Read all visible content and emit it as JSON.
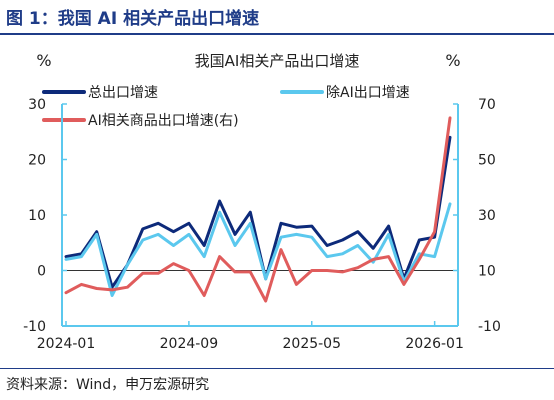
{
  "figure_title": "图 1：我国 AI 相关产品出口增速",
  "source": "资料来源：Wind，申万宏源研究",
  "chart_data": {
    "type": "line",
    "title": "我国AI相关产品出口增速",
    "left_unit": "%",
    "right_unit": "%",
    "x": [
      "2024-01",
      "2024-02",
      "2024-03",
      "2024-04",
      "2024-05",
      "2024-06",
      "2024-07",
      "2024-08",
      "2024-09",
      "2024-10",
      "2024-11",
      "2024-12",
      "2025-01",
      "2025-02",
      "2025-03",
      "2025-04",
      "2025-05",
      "2025-06",
      "2025-07",
      "2025-08",
      "2025-09",
      "2025-10",
      "2025-11",
      "2025-12",
      "2026-01",
      "2026-02"
    ],
    "x_tick_labels": [
      "2024-01",
      "2024-09",
      "2025-05",
      "2026-01"
    ],
    "y_left": {
      "min": -10,
      "max": 30,
      "ticks": [
        "-10",
        "0",
        "10",
        "20",
        "30"
      ]
    },
    "y_right": {
      "min": -10,
      "max": 70,
      "ticks": [
        "-10",
        "10",
        "30",
        "50",
        "70"
      ]
    },
    "series": [
      {
        "name": "总出口增速",
        "axis": "left",
        "color": "#0d2a7a",
        "values": [
          2.5,
          3.0,
          7.0,
          -3.0,
          1.0,
          7.5,
          8.5,
          7.0,
          8.5,
          4.5,
          12.5,
          6.5,
          10.5,
          -1.5,
          8.5,
          7.8,
          8.0,
          4.5,
          5.5,
          7.0,
          4.0,
          8.0,
          -1.5,
          5.5,
          6.0,
          24.0
        ]
      },
      {
        "name": "除AI出口增速",
        "axis": "left",
        "color": "#5bc8ee",
        "values": [
          2.0,
          2.5,
          6.5,
          -4.5,
          1.0,
          5.5,
          6.5,
          4.5,
          6.5,
          2.5,
          10.5,
          4.5,
          8.5,
          -1.5,
          6.0,
          6.5,
          6.0,
          2.5,
          3.0,
          4.5,
          1.5,
          6.5,
          -2.0,
          3.0,
          2.5,
          12.0
        ]
      },
      {
        "name": "AI相关商品出口增速(右)",
        "axis": "right",
        "color": "#e05c5c",
        "values": [
          2.0,
          5.0,
          3.5,
          3.0,
          4.0,
          9.0,
          9.0,
          12.5,
          10.0,
          1.0,
          15.0,
          9.5,
          9.5,
          -1.0,
          17.5,
          5.0,
          10.0,
          10.0,
          9.5,
          11.0,
          14.0,
          15.0,
          5.0,
          14.0,
          24.0,
          65.0
        ]
      }
    ]
  }
}
